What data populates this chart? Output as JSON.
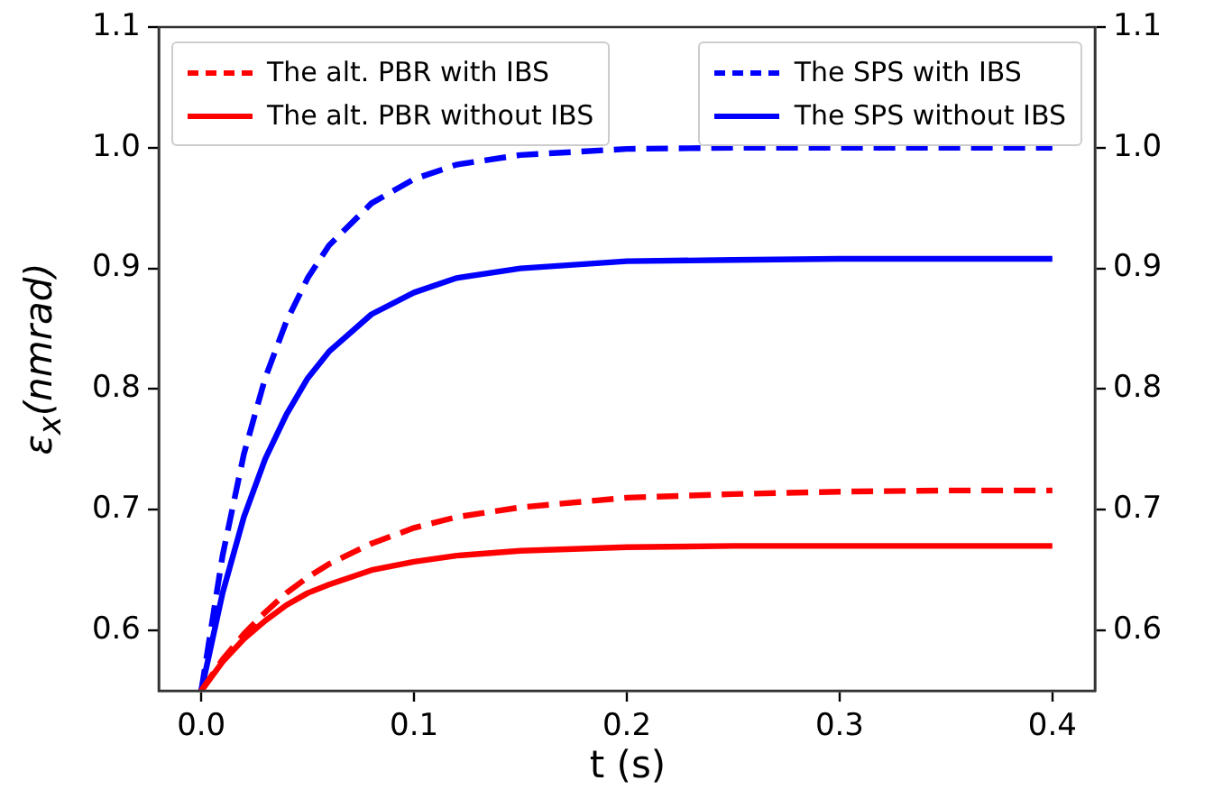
{
  "chart_data": {
    "type": "line",
    "xlabel": "t (s)",
    "ylabel": "ε$_{x}$(nmrad)",
    "x": [
      0,
      0.01,
      0.02,
      0.03,
      0.04,
      0.05,
      0.06,
      0.08,
      0.1,
      0.12,
      0.15,
      0.2,
      0.25,
      0.3,
      0.35,
      0.4
    ],
    "xlim": [
      -0.02,
      0.42
    ],
    "xticks": [
      {
        "value": 0,
        "label": "0.0"
      },
      0.1,
      0.2,
      0.3,
      0.4
    ],
    "ylim": [
      0.55,
      1.1
    ],
    "yticks": [
      0.6,
      0.7,
      0.8,
      0.9,
      {
        "value": 1,
        "label": "1.0"
      },
      1.1
    ],
    "y2lim": [
      0.55,
      1.1
    ],
    "y2ticks": [
      0.6,
      0.7,
      0.8,
      0.9,
      {
        "value": 1,
        "label": "1.0"
      },
      1.1
    ],
    "grid": false,
    "legend": "top",
    "marker": "none",
    "series": [
      {
        "name": "The alt. PBR with IBS",
        "color": "#ff0000",
        "line_style": "dashed",
        "values": [
          0.55,
          0.576,
          0.597,
          0.615,
          0.631,
          0.644,
          0.655,
          0.672,
          0.685,
          0.694,
          0.702,
          0.71,
          0.713,
          0.715,
          0.716,
          0.716
        ]
      },
      {
        "name": "The alt. PBR without IBS",
        "color": "#ff0000",
        "line_style": "solid",
        "values": [
          0.55,
          0.574,
          0.593,
          0.608,
          0.621,
          0.631,
          0.638,
          0.65,
          0.657,
          0.662,
          0.666,
          0.669,
          0.67,
          0.67,
          0.67,
          0.67
        ]
      },
      {
        "name": "The SPS with IBS",
        "color": "#0000ff",
        "line_style": "dashed",
        "values": [
          0.55,
          0.662,
          0.746,
          0.809,
          0.856,
          0.892,
          0.919,
          0.954,
          0.974,
          0.986,
          0.994,
          0.999,
          1.0,
          1.0,
          1.0,
          1.0
        ]
      },
      {
        "name": "The SPS without IBS",
        "color": "#0000ff",
        "line_style": "solid",
        "values": [
          0.55,
          0.631,
          0.694,
          0.742,
          0.779,
          0.809,
          0.831,
          0.862,
          0.88,
          0.892,
          0.9,
          0.906,
          0.907,
          0.908,
          0.908,
          0.908
        ]
      }
    ]
  }
}
